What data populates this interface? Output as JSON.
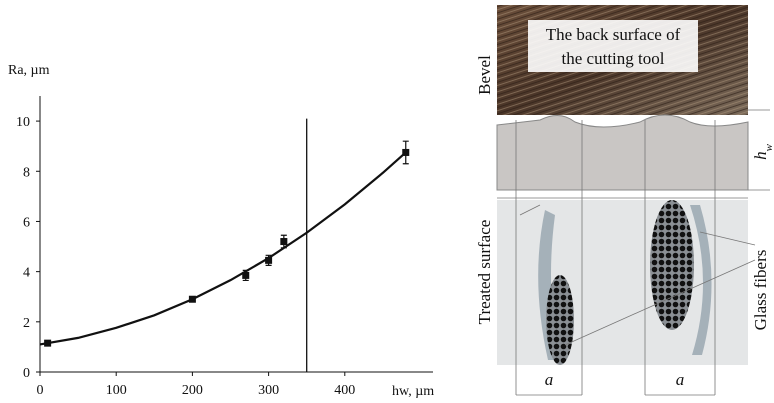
{
  "chart_data": {
    "type": "errorbar",
    "y_label": "Ra, µm",
    "x_label": "hw, µm",
    "x": [
      10,
      200,
      270,
      300,
      320,
      480
    ],
    "values": [
      1.15,
      2.9,
      3.85,
      4.45,
      5.2,
      8.75
    ],
    "errors": [
      0.1,
      0.1,
      0.2,
      0.2,
      0.25,
      0.45
    ],
    "color": "#111111",
    "fit": {
      "x": [
        0,
        50,
        100,
        150,
        200,
        250,
        300,
        350,
        400,
        450,
        480
      ],
      "y": [
        1.1,
        1.36,
        1.76,
        2.26,
        2.9,
        3.66,
        4.54,
        5.55,
        6.68,
        7.94,
        8.75
      ]
    },
    "vline": {
      "x": 350,
      "y": [
        0,
        10.1
      ]
    },
    "xlim": [
      0,
      500
    ],
    "ylim": [
      0,
      11
    ],
    "xticks": [
      0,
      100,
      200,
      300,
      400
    ],
    "yticks": [
      0,
      2,
      4,
      6,
      8,
      10
    ]
  },
  "image": {
    "caption_lines": [
      "The back surface of",
      "the cutting tool"
    ],
    "bevel": "Bevel",
    "hw": {
      "base": "h",
      "sub": "w"
    },
    "treated": "Treated surface",
    "fibers": "Glass fibers",
    "widths": [
      "a",
      "a"
    ]
  }
}
